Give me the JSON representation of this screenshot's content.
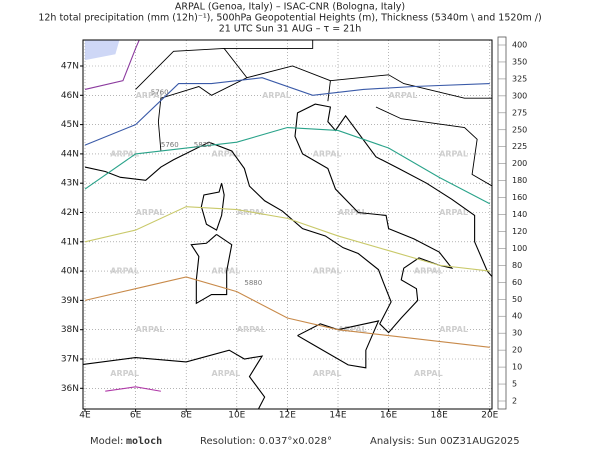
{
  "header": {
    "lines": [
      "ARPAL (Genoa, Italy)  –  ISAC-CNR (Bologna, Italy)",
      "12h total precipitation (mm (12h)⁻¹), 500hPa Geopotential Heights (m), Thickness (5340m \\ and 1520m /)",
      "21 UTC Sun 31 AUG  –  τ = 21h"
    ]
  },
  "map": {
    "lon_ticks": [
      {
        "value": 4,
        "label": "4E"
      },
      {
        "value": 6,
        "label": "6E"
      },
      {
        "value": 8,
        "label": "8E"
      },
      {
        "value": 10,
        "label": "10E"
      },
      {
        "value": 12,
        "label": "12E"
      },
      {
        "value": 14,
        "label": "14E"
      },
      {
        "value": 16,
        "label": "16E"
      },
      {
        "value": 18,
        "label": "18E"
      },
      {
        "value": 20,
        "label": "20E"
      }
    ],
    "lat_ticks": [
      {
        "value": 36,
        "label": "36N"
      },
      {
        "value": 37,
        "label": "37N"
      },
      {
        "value": 38,
        "label": "38N"
      },
      {
        "value": 39,
        "label": "39N"
      },
      {
        "value": 40,
        "label": "40N"
      },
      {
        "value": 41,
        "label": "41N"
      },
      {
        "value": 42,
        "label": "42N"
      },
      {
        "value": 43,
        "label": "43N"
      },
      {
        "value": 44,
        "label": "44N"
      },
      {
        "value": 45,
        "label": "45N"
      },
      {
        "value": 46,
        "label": "46N"
      },
      {
        "value": 47,
        "label": "47N"
      }
    ],
    "contour_labels": [
      "5760",
      "5760",
      "5820",
      "5880"
    ],
    "watermark": "ARPAL"
  },
  "colorbar": {
    "levels": [
      2,
      5,
      10,
      20,
      30,
      40,
      50,
      60,
      80,
      100,
      120,
      140,
      160,
      180,
      200,
      225,
      250,
      275,
      300,
      325,
      350,
      400
    ]
  },
  "footer": {
    "model_label": "Model:",
    "model": "moloch",
    "resolution": "Resolution: 0.037°x0.028°",
    "analysis": "Analysis: Sun 00Z31AUG2025"
  }
}
